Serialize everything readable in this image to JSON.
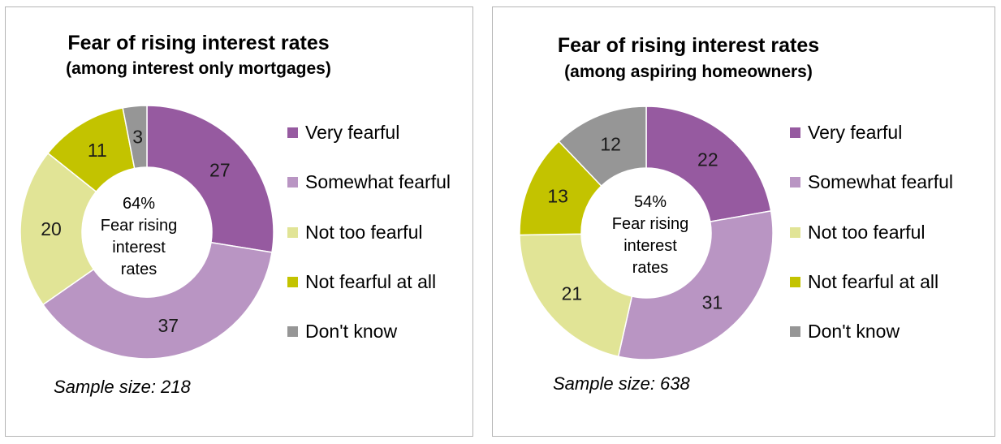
{
  "colors": {
    "very_fearful": "#965aa0",
    "somewhat_fearful": "#b995c3",
    "not_too_fearful": "#e1e496",
    "not_fearful_at_all": "#c3c300",
    "dont_know": "#969696"
  },
  "charts": [
    {
      "title": "Fear of rising interest rates",
      "subtitle": "(among interest only mortgages)",
      "center": {
        "line1": "64%",
        "line2": "Fear rising",
        "line3": "interest",
        "line4": "rates"
      },
      "sample": "Sample size: 218",
      "legend": [
        "Very fearful",
        "Somewhat fearful",
        "Not too fearful",
        "Not fearful at all",
        "Don't know"
      ]
    },
    {
      "title": "Fear of rising interest rates",
      "subtitle": "(among aspiring homeowners)",
      "center": {
        "line1": "54%",
        "line2": "Fear rising",
        "line3": "interest",
        "line4": "rates"
      },
      "sample": "Sample size:  638",
      "legend": [
        "Very fearful",
        "Somewhat fearful",
        "Not too fearful",
        "Not fearful at all",
        "Don't know"
      ]
    }
  ],
  "chart_data": [
    {
      "type": "pie",
      "title": "Fear of rising interest rates",
      "subtitle": "(among interest only mortgages)",
      "categories": [
        "Very fearful",
        "Somewhat fearful",
        "Not too fearful",
        "Not fearful at all",
        "Don't know"
      ],
      "values": [
        27,
        37,
        20,
        11,
        3
      ],
      "legend": "right"
    },
    {
      "type": "pie",
      "title": "Fear of rising interest rates",
      "subtitle": "(among aspiring homeowners)",
      "categories": [
        "Very fearful",
        "Somewhat fearful",
        "Not too fearful",
        "Not fearful at all",
        "Don't know"
      ],
      "values": [
        22,
        31,
        21,
        13,
        12
      ],
      "legend": "right"
    }
  ]
}
